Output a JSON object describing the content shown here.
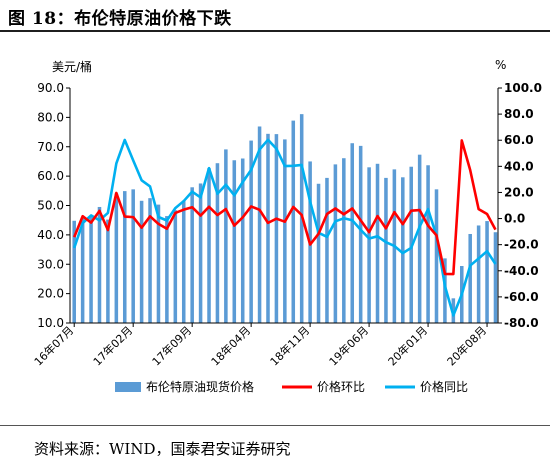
{
  "header": {
    "title": "图 18：布伦特原油价格下跌"
  },
  "footer": {
    "source": "资料来源：WIND，国泰君安证券研究"
  },
  "colors": {
    "bar": "#5b9bd5",
    "mom": "#ff0000",
    "yoy": "#00b0f0",
    "axis": "#000000"
  },
  "chart_data": {
    "type": "bar",
    "title": "",
    "y_left_label": "美元/桶",
    "y_right_label": "%",
    "y_left_range": [
      10.0,
      90.0
    ],
    "y_left_ticks": [
      "10.0",
      "20.0",
      "30.0",
      "40.0",
      "50.0",
      "60.0",
      "70.0",
      "80.0",
      "90.0"
    ],
    "y_right_range": [
      -80.0,
      100.0
    ],
    "y_right_ticks": [
      "-80.0",
      "-60.0",
      "-40.0",
      "-20.0",
      "0.0",
      "20.0",
      "40.0",
      "60.0",
      "80.0",
      "100.0"
    ],
    "x_tick_labels": [
      {
        "index": 0,
        "label": "16年07月"
      },
      {
        "index": 7,
        "label": "17年02月"
      },
      {
        "index": 14,
        "label": "17年09月"
      },
      {
        "index": 21,
        "label": "18年04月"
      },
      {
        "index": 28,
        "label": "18年11月"
      },
      {
        "index": 35,
        "label": "19年06月"
      },
      {
        "index": 42,
        "label": "20年01月"
      },
      {
        "index": 49,
        "label": "20年08月"
      }
    ],
    "categories": [
      "16-07",
      "16-08",
      "16-09",
      "16-10",
      "16-11",
      "16-12",
      "17-01",
      "17-02",
      "17-03",
      "17-04",
      "17-05",
      "17-06",
      "17-07",
      "17-08",
      "17-09",
      "17-10",
      "17-11",
      "17-12",
      "18-01",
      "18-02",
      "18-03",
      "18-04",
      "18-05",
      "18-06",
      "18-07",
      "18-08",
      "18-09",
      "18-10",
      "18-11",
      "18-12",
      "19-01",
      "19-02",
      "19-03",
      "19-04",
      "19-05",
      "19-06",
      "19-07",
      "19-08",
      "19-09",
      "19-10",
      "19-11",
      "19-12",
      "20-01",
      "20-02",
      "20-03",
      "20-04",
      "20-05",
      "20-06",
      "20-07",
      "20-08",
      "20-09"
    ],
    "series": [
      {
        "name": "布伦特原油现货价格",
        "type": "bar",
        "axis": "left",
        "values": [
          44.8,
          45.6,
          46.5,
          49.5,
          45.2,
          54.1,
          54.9,
          55.5,
          51.6,
          52.5,
          50.3,
          46.4,
          48.4,
          51.7,
          56.2,
          57.5,
          62.7,
          64.4,
          69.1,
          65.4,
          66.0,
          72.1,
          76.9,
          74.4,
          74.3,
          72.5,
          78.9,
          81.1,
          65.0,
          57.4,
          59.4,
          64.0,
          66.1,
          71.2,
          70.3,
          63.0,
          64.2,
          59.4,
          62.3,
          59.6,
          63.2,
          67.3,
          63.7,
          55.5,
          32.0,
          18.4,
          29.4,
          40.3,
          43.2,
          44.7,
          40.9
        ]
      },
      {
        "name": "价格环比",
        "type": "line",
        "axis": "right",
        "values": [
          -14.2,
          1.8,
          -3.1,
          5.9,
          -8.8,
          19.6,
          1.5,
          1.1,
          -7.0,
          1.7,
          -4.1,
          -7.8,
          4.3,
          6.8,
          8.7,
          2.3,
          9.0,
          2.7,
          7.3,
          -5.4,
          0.9,
          9.3,
          6.7,
          -3.3,
          -0.1,
          -2.4,
          8.9,
          2.8,
          -19.9,
          -11.7,
          3.5,
          7.7,
          3.3,
          7.7,
          -1.3,
          -10.4,
          1.9,
          -7.5,
          4.9,
          -4.3,
          6.0,
          6.5,
          -5.4,
          -12.9,
          -42.4,
          -42.5,
          59.8,
          37.1,
          7.2,
          3.5,
          -8.5
        ]
      },
      {
        "name": "价格同比",
        "type": "line",
        "axis": "right",
        "values": [
          -22.5,
          -3.5,
          2.4,
          -1.4,
          4.3,
          42.2,
          60.2,
          44.6,
          29.3,
          24.6,
          1.2,
          -1.5,
          8.0,
          13.4,
          20.6,
          16.2,
          38.6,
          19.0,
          25.9,
          17.8,
          27.9,
          37.3,
          52.9,
          60.3,
          53.5,
          40.2,
          40.4,
          41.1,
          13.0,
          -10.9,
          -14.0,
          -2.1,
          0.2,
          -1.3,
          -8.6,
          -15.3,
          -13.6,
          -18.1,
          -21.0,
          -26.5,
          -22.4,
          -6.2,
          7.2,
          -13.2,
          -51.6,
          -74.2,
          -58.2,
          -36.0,
          -30.6,
          -25.0,
          -34.8
        ]
      }
    ],
    "legend": {
      "position": "bottom",
      "entries": [
        "布伦特原油现货价格",
        "价格环比",
        "价格同比"
      ]
    }
  }
}
